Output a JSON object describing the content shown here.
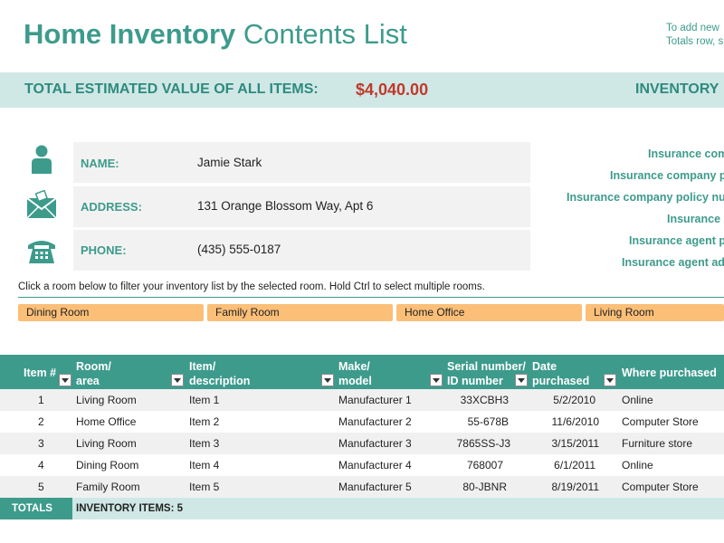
{
  "header": {
    "title_bold": "Home Inventory",
    "title_light": "Contents List",
    "note_line1": "To add new",
    "note_line2": "Totals row, s"
  },
  "summary": {
    "total_label": "TOTAL ESTIMATED VALUE OF ALL ITEMS:",
    "total_value": "$4,040.00",
    "inventory_label": "INVENTORY"
  },
  "owner": {
    "name_label": "NAME:",
    "name_value": "Jamie Stark",
    "address_label": "ADDRESS:",
    "address_value": "131 Orange Blossom Way, Apt 6",
    "phone_label": "PHONE:",
    "phone_value": "(435) 555-0187"
  },
  "insurance": {
    "labels": [
      "Insurance com",
      "Insurance company p",
      "Insurance company policy nu",
      "Insurance a",
      "Insurance agent p",
      "Insurance agent ad"
    ]
  },
  "filter": {
    "note": "Click a room below to filter your inventory list by the selected room. Hold Ctrl to select multiple rooms.",
    "rooms": [
      "Dining Room",
      "Family Room",
      "Home Office",
      "Living Room"
    ]
  },
  "table": {
    "headers": {
      "item_no": "Item #",
      "room_1": "Room/",
      "room_2": "area",
      "item_1": "Item/",
      "item_2": "description",
      "make_1": "Make/",
      "make_2": "model",
      "serial_1": "Serial number/",
      "serial_2": "ID number",
      "date_1": "Date",
      "date_2": "purchased",
      "where": "Where purchased"
    },
    "rows": [
      {
        "num": "1",
        "room": "Living Room",
        "item": "Item 1",
        "make": "Manufacturer 1",
        "serial": "33XCBH3",
        "date": "5/2/2010",
        "where": "Online"
      },
      {
        "num": "2",
        "room": "Home Office",
        "item": "Item 2",
        "make": "Manufacturer 2",
        "serial": "55-678B",
        "date": "11/6/2010",
        "where": "Computer Store"
      },
      {
        "num": "3",
        "room": "Living Room",
        "item": "Item 3",
        "make": "Manufacturer 3",
        "serial": "7865SS-J3",
        "date": "3/15/2011",
        "where": "Furniture store"
      },
      {
        "num": "4",
        "room": "Dining Room",
        "item": "Item 4",
        "make": "Manufacturer 4",
        "serial": "768007",
        "date": "6/1/2011",
        "where": "Online"
      },
      {
        "num": "5",
        "room": "Family Room",
        "item": "Item 5",
        "make": "Manufacturer 5",
        "serial": "80-JBNR",
        "date": "8/19/2011",
        "where": "Computer Store"
      }
    ],
    "totals_label": "TOTALS",
    "totals_count": "INVENTORY ITEMS: 5"
  },
  "icons": {
    "name": "person-icon",
    "address": "envelope-icon",
    "phone": "telephone-icon"
  },
  "colors": {
    "accent": "#3d9b8c",
    "band": "#cfe8e6",
    "slicer": "#fbbf78",
    "value": "#c0392b"
  }
}
